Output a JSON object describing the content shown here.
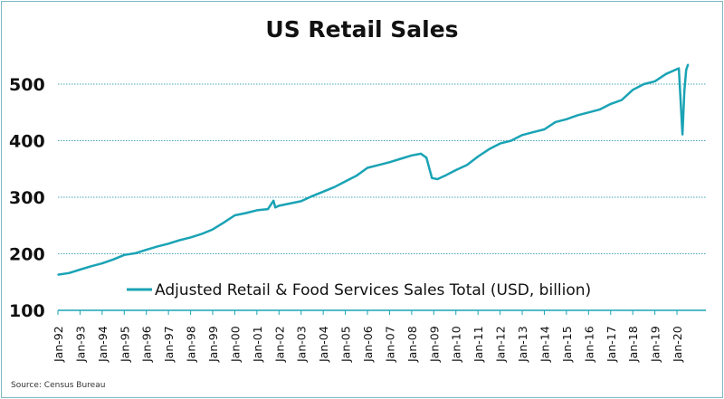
{
  "chart_data": {
    "type": "line",
    "title": "US Retail Sales",
    "source": "Source: Census Bureau",
    "ylim": [
      100,
      550
    ],
    "yticks": [
      100,
      200,
      300,
      400,
      500
    ],
    "grid": "horizontal dotted at 200-500",
    "xticks": [
      "Jan-92",
      "Jan-93",
      "Jan-94",
      "Jan-95",
      "Jan-96",
      "Jan-97",
      "Jan-98",
      "Jan-99",
      "Jan-00",
      "Jan-01",
      "Jan-02",
      "Jan-03",
      "Jan-04",
      "Jan-05",
      "Jan-06",
      "Jan-07",
      "Jan-08",
      "Jan-09",
      "Jan-10",
      "Jan-11",
      "Jan-12",
      "Jan-13",
      "Jan-14",
      "Jan-15",
      "Jan-16",
      "Jan-17",
      "Jan-18",
      "Jan-19",
      "Jan-20"
    ],
    "legend_position": "bottom-center inside",
    "color": "#1aa3b5",
    "series": [
      {
        "name": "Adjusted Retail & Food Services Sales Total (USD, billion)",
        "x": [
          "1992-01",
          "1992-07",
          "1993-01",
          "1993-07",
          "1994-01",
          "1994-07",
          "1995-01",
          "1995-07",
          "1996-01",
          "1996-07",
          "1997-01",
          "1997-07",
          "1998-01",
          "1998-07",
          "1999-01",
          "1999-07",
          "2000-01",
          "2000-07",
          "2001-01",
          "2001-07",
          "2001-10",
          "2001-11",
          "2002-01",
          "2002-07",
          "2003-01",
          "2003-07",
          "2004-01",
          "2004-07",
          "2005-01",
          "2005-07",
          "2006-01",
          "2006-07",
          "2007-01",
          "2007-07",
          "2008-01",
          "2008-06",
          "2008-09",
          "2008-12",
          "2009-03",
          "2009-07",
          "2010-01",
          "2010-07",
          "2011-01",
          "2011-07",
          "2012-01",
          "2012-07",
          "2013-01",
          "2013-07",
          "2014-01",
          "2014-07",
          "2015-01",
          "2015-07",
          "2016-01",
          "2016-07",
          "2017-01",
          "2017-07",
          "2018-01",
          "2018-07",
          "2019-01",
          "2019-07",
          "2020-02",
          "2020-04",
          "2020-05",
          "2020-06",
          "2020-07"
        ],
        "values": [
          163,
          166,
          172,
          178,
          183,
          190,
          198,
          201,
          207,
          213,
          218,
          224,
          229,
          235,
          243,
          255,
          268,
          272,
          277,
          279,
          294,
          282,
          285,
          289,
          293,
          302,
          310,
          318,
          328,
          338,
          352,
          357,
          362,
          368,
          374,
          377,
          370,
          334,
          332,
          338,
          348,
          357,
          372,
          385,
          395,
          400,
          410,
          415,
          420,
          433,
          438,
          445,
          450,
          455,
          465,
          472,
          490,
          500,
          505,
          518,
          528,
          411,
          488,
          525,
          535
        ]
      }
    ]
  }
}
